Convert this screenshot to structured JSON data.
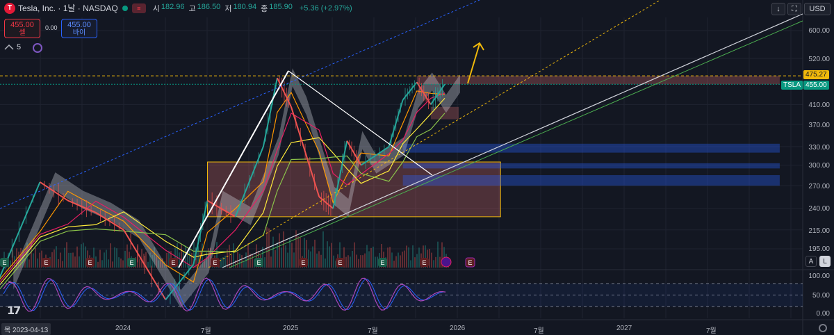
{
  "header": {
    "logo": "T",
    "symbol_title": "Tesla, Inc. · 1날 · NASDAQ",
    "flag": "≡",
    "ohlc": [
      {
        "k": "시",
        "v": "182.96"
      },
      {
        "k": "고",
        "v": "186.50"
      },
      {
        "k": "저",
        "v": "180.94"
      },
      {
        "k": "종",
        "v": "185.90"
      }
    ],
    "change": "+5.36 (+2.97%)"
  },
  "trade": {
    "sell_price": "455.00",
    "sell_label": "셀",
    "spread": "0.00",
    "buy_price": "455.00",
    "buy_label": "바이"
  },
  "indicators": {
    "count": "5"
  },
  "toolbar": {
    "download_icon": "↓",
    "fullscreen_icon": "⛶",
    "currency": "USD"
  },
  "price_axis": {
    "labels": [
      "600.00",
      "520.00",
      "410.00",
      "370.00",
      "330.00",
      "300.00",
      "270.00",
      "240.00",
      "215.00",
      "195.00"
    ],
    "tag_level": "475.27",
    "tag_symbol": "TSLA",
    "tag_price": "455.00"
  },
  "osc_axis": {
    "labels": [
      "100.00",
      "50.00",
      "0.00"
    ]
  },
  "pane_buttons": {
    "auto": "A",
    "log": "L"
  },
  "time_axis": {
    "cursor_date": "목 2023-04-13",
    "labels": [
      "2024",
      "7월",
      "2025",
      "7월",
      "2026",
      "7월",
      "2027",
      "7월"
    ]
  },
  "earnings_markers": [
    "E",
    "E",
    "E",
    "E",
    "E",
    "E",
    "E",
    "E",
    "E",
    "E",
    "E",
    "E"
  ],
  "tv_logo": "17",
  "chart_data": {
    "type": "candlestick",
    "title": "Tesla, Inc. · 1날 · NASDAQ",
    "ylim": [
      180,
      640
    ],
    "x": [
      "2023-04",
      "2024-01",
      "2024-07",
      "2025-01",
      "2025-07",
      "2026-01",
      "2026-07",
      "2027-01",
      "2027-07"
    ],
    "series": [
      {
        "name": "TSLA",
        "values": [
          {
            "date": "2023-04",
            "close": 165
          },
          {
            "date": "2023-07",
            "close": 275
          },
          {
            "date": "2023-09",
            "close": 250
          },
          {
            "date": "2023-11",
            "close": 235
          },
          {
            "date": "2024-01",
            "close": 215
          },
          {
            "date": "2024-04",
            "close": 150
          },
          {
            "date": "2024-06",
            "close": 180
          },
          {
            "date": "2024-07",
            "close": 250
          },
          {
            "date": "2024-09",
            "close": 230
          },
          {
            "date": "2024-11",
            "close": 330
          },
          {
            "date": "2024-12",
            "close": 470
          },
          {
            "date": "2025-01",
            "close": 405
          },
          {
            "date": "2025-03",
            "close": 255
          },
          {
            "date": "2025-04",
            "close": 240
          },
          {
            "date": "2025-05",
            "close": 340
          },
          {
            "date": "2025-06",
            "close": 300
          },
          {
            "date": "2025-08",
            "close": 330
          },
          {
            "date": "2025-09",
            "close": 420
          },
          {
            "date": "2025-10",
            "close": 460
          },
          {
            "date": "2025-11",
            "close": 410
          },
          {
            "date": "2025-12",
            "close": 455
          }
        ]
      }
    ],
    "levels": [
      475.27,
      455.0
    ],
    "zones": [
      {
        "from": "2024-07",
        "to": "2026-04",
        "low": 230,
        "high": 305,
        "color": "#e57373"
      },
      {
        "from": "2025-11",
        "to": "2026-01",
        "low": 380,
        "high": 405,
        "color": "#e57373"
      },
      {
        "from": "2025-10",
        "to": "2027-12",
        "low": 455,
        "high": 475,
        "color": "#e57373"
      },
      {
        "from": "2025-09",
        "to": "2027-12",
        "low": 320,
        "high": 335,
        "color": "#2962ff"
      },
      {
        "from": "2025-09",
        "to": "2027-12",
        "low": 295,
        "high": 303,
        "color": "#2962ff"
      },
      {
        "from": "2025-09",
        "to": "2027-12",
        "low": 270,
        "high": 285,
        "color": "#2962ff"
      }
    ],
    "oscillator": {
      "ylim": [
        0,
        100
      ],
      "levels": [
        80,
        50,
        20
      ]
    },
    "grid": true
  },
  "colors": {
    "background": "#131722",
    "up": "#26a69a",
    "down": "#ef5350",
    "accent": "#2962ff",
    "level": "#f0b90b",
    "zone_red": "#e57373",
    "zone_blue": "#2962ff",
    "oscillator": "#ab47bc"
  }
}
